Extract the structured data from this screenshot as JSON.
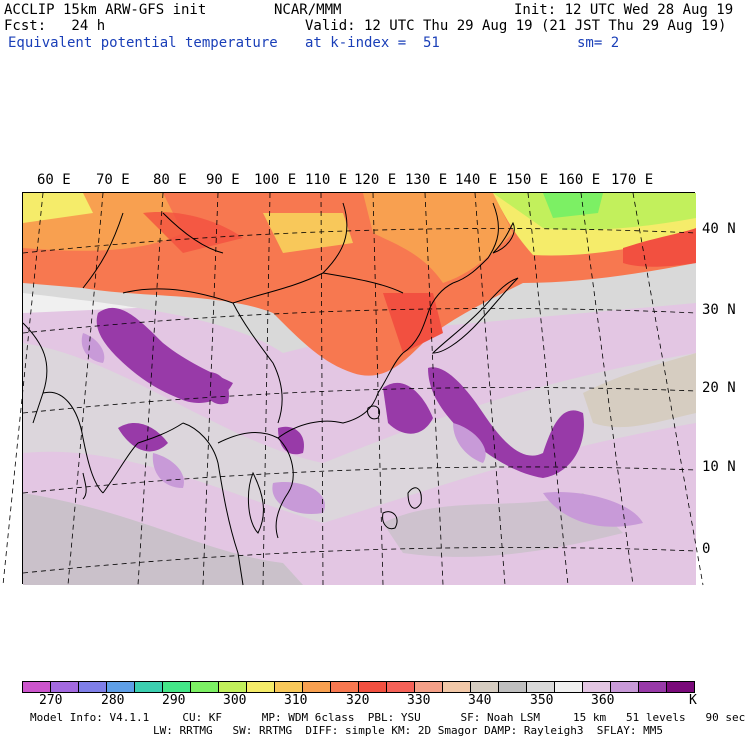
{
  "header": {
    "model": "ACCLIP 15km ARW-GFS init",
    "center": "NCAR/MMM",
    "init": "Init: 12 UTC Wed 28 Aug 19",
    "fcst": "Fcst:   24 h",
    "valid": "Valid: 12 UTC Thu 29 Aug 19 (21 JST Thu 29 Aug 19)",
    "field": "Equivalent potential temperature",
    "level": "at k-index =  51",
    "smooth": "sm= 2"
  },
  "map": {
    "lon_labels": [
      "60 E",
      "70 E",
      "80 E",
      "90 E",
      "100 E",
      "110 E",
      "120 E",
      "130 E",
      "140 E",
      "150 E",
      "160 E",
      "170 E"
    ],
    "lat_labels": [
      "40 N",
      "30 N",
      "20 N",
      "10 N",
      "0"
    ]
  },
  "colorbar": {
    "colors": [
      "#cc55cc",
      "#a36ae0",
      "#7f7fe8",
      "#5f9fe6",
      "#3ccfb0",
      "#44e688",
      "#7cf064",
      "#c2f05c",
      "#f5ec6a",
      "#f8c85a",
      "#f8a050",
      "#f77850",
      "#f25040",
      "#f56258",
      "#f4a088",
      "#f2c8a8",
      "#d6cdc1",
      "#bfbfbf",
      "#d9d9d9",
      "#f0f0f0",
      "#e3c6e3",
      "#c89ad8",
      "#983aa8",
      "#7a0a7a"
    ],
    "labels": [
      "270",
      "280",
      "290",
      "300",
      "310",
      "320",
      "330",
      "340",
      "350",
      "360",
      "K"
    ]
  },
  "footer": {
    "line1": "Model Info: V4.1.1     CU: KF      MP: WDM 6class  PBL: YSU      SF: Noah LSM     15 km   51 levels   90 sec",
    "line2": "LW: RRTMG   SW: RRTMG  DIFF: simple KM: 2D Smagor DAMP: Rayleigh3  SFLAY: MM5"
  }
}
